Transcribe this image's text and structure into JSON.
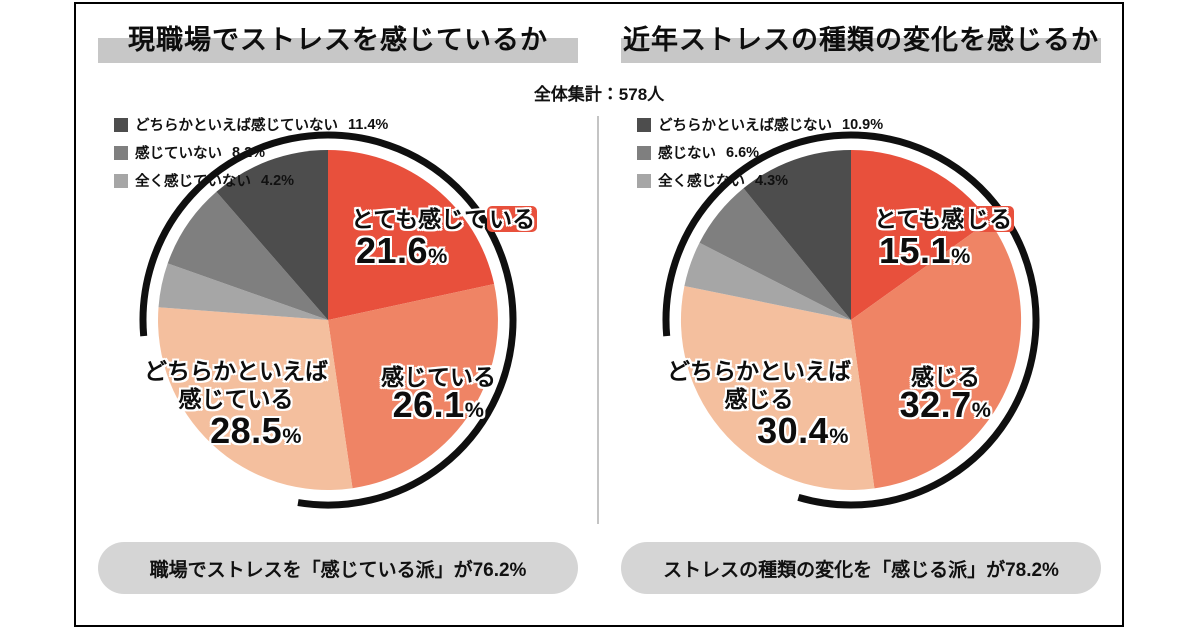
{
  "header": {
    "total": "全体集計：578人"
  },
  "chart_data": [
    {
      "type": "pie",
      "title": "現職場でストレスを感じているか",
      "categories": [
        "とても感じている",
        "感じている",
        "どちらかといえば感じている",
        "全く感じていない",
        "感じていない",
        "どちらかといえば感じていない"
      ],
      "values": [
        21.6,
        26.1,
        28.5,
        4.2,
        8.2,
        11.4
      ],
      "colors": [
        "#e8503c",
        "#ef8465",
        "#f4bf9e",
        "#a6a6a6",
        "#7f7f7f",
        "#4d4d4d"
      ],
      "start_angle": "top",
      "direction": "clockwise",
      "highlight_arc_pct": 76.2,
      "legend": [
        {
          "label": "どちらかといえば感じていない",
          "value": "11.4%",
          "color": "#4d4d4d"
        },
        {
          "label": "感じていない",
          "value": "8.2%",
          "color": "#7f7f7f"
        },
        {
          "label": "全く感じていない",
          "value": "4.2%",
          "color": "#a6a6a6"
        }
      ],
      "on_pie": {
        "strong": {
          "text_main": "とても感じて",
          "text_tail": "いる",
          "pct": "21.6%"
        },
        "mid": {
          "text": "感じている",
          "pct": "26.1%"
        },
        "somewhat": {
          "line1": "どちらかといえば",
          "line2": "感じている",
          "pct": "28.5%"
        }
      },
      "annotation": "職場でストレスを「感じている派」が76.2%"
    },
    {
      "type": "pie",
      "title": "近年ストレスの種類の変化を感じるか",
      "categories": [
        "とても感じる",
        "感じる",
        "どちらかといえば感じる",
        "全く感じない",
        "感じない",
        "どちらかといえば感じない"
      ],
      "values": [
        15.1,
        32.7,
        30.4,
        4.3,
        6.6,
        10.9
      ],
      "colors": [
        "#e8503c",
        "#ef8465",
        "#f4bf9e",
        "#a6a6a6",
        "#7f7f7f",
        "#4d4d4d"
      ],
      "start_angle": "top",
      "direction": "clockwise",
      "highlight_arc_pct": 78.2,
      "legend": [
        {
          "label": "どちらかといえば感じない",
          "value": "10.9%",
          "color": "#4d4d4d"
        },
        {
          "label": "感じない",
          "value": "6.6%",
          "color": "#7f7f7f"
        },
        {
          "label": "全く感じない",
          "value": "4.3%",
          "color": "#a6a6a6"
        }
      ],
      "on_pie": {
        "strong": {
          "text_main": "とても感",
          "text_tail": "じる",
          "pct": "15.1%"
        },
        "mid": {
          "text": "感じる",
          "pct": "32.7%"
        },
        "somewhat": {
          "line1": "どちらかといえば",
          "line2": "感じる",
          "pct": "30.4%"
        }
      },
      "annotation": "ストレスの種類の変化を「感じる派」が78.2%"
    }
  ]
}
